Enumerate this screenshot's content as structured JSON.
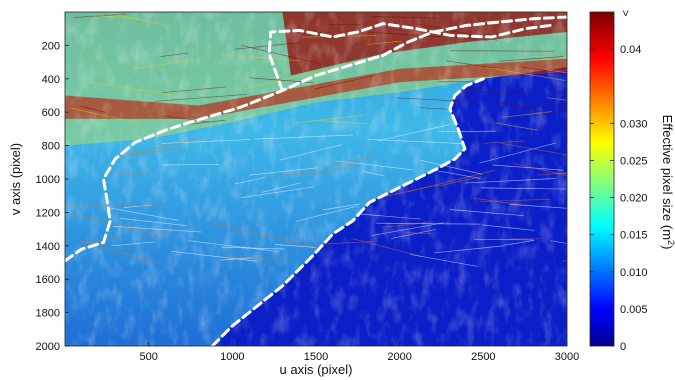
{
  "chart_data": {
    "type": "heatmap",
    "xlabel": "u axis (pixel)",
    "ylabel": "v axis (pixel)",
    "xlim": [
      0,
      3000
    ],
    "ylim": [
      2000,
      0
    ],
    "x_ticks": [
      500,
      1000,
      1500,
      2000,
      2500,
      3000
    ],
    "y_ticks": [
      200,
      400,
      600,
      800,
      1000,
      1200,
      1400,
      1600,
      1800,
      2000
    ],
    "colorbar": {
      "label_main": "Effective pixel size (m",
      "label_sup": "2",
      "label_end": ")",
      "range": [
        0,
        0.045
      ],
      "ticks": [
        "0",
        "0.005",
        "0.010",
        "0.015",
        "0.020",
        "0.025",
        "0.030",
        "0.04"
      ],
      "over_marker": ">",
      "colormap": "jet"
    },
    "boundary_style": {
      "color": "#ffffff",
      "dash": "white dashed line"
    },
    "boundary_segments": [
      [
        [
          0,
          1490
        ],
        [
          100,
          1420
        ],
        [
          230,
          1380
        ],
        [
          270,
          1250
        ],
        [
          250,
          1120
        ],
        [
          230,
          1000
        ],
        [
          300,
          880
        ],
        [
          420,
          780
        ],
        [
          620,
          700
        ],
        [
          850,
          630
        ],
        [
          1050,
          570
        ],
        [
          1300,
          470
        ],
        [
          1500,
          380
        ],
        [
          1700,
          320
        ],
        [
          1900,
          260
        ],
        [
          2050,
          180
        ],
        [
          2200,
          120
        ],
        [
          2400,
          80
        ],
        [
          2600,
          60
        ],
        [
          2800,
          40
        ],
        [
          3000,
          30
        ]
      ],
      [
        [
          1300,
          470
        ],
        [
          1220,
          250
        ],
        [
          1230,
          120
        ],
        [
          1400,
          110
        ],
        [
          1600,
          150
        ],
        [
          1750,
          120
        ],
        [
          1900,
          70
        ],
        [
          2100,
          100
        ],
        [
          2300,
          140
        ],
        [
          2550,
          150
        ],
        [
          2750,
          100
        ],
        [
          2900,
          80
        ]
      ],
      [
        [
          880,
          2000
        ],
        [
          1000,
          1880
        ],
        [
          1150,
          1760
        ],
        [
          1300,
          1640
        ],
        [
          1480,
          1460
        ],
        [
          1600,
          1330
        ],
        [
          1720,
          1250
        ],
        [
          1820,
          1140
        ],
        [
          1940,
          1080
        ],
        [
          2080,
          1010
        ],
        [
          2220,
          940
        ],
        [
          2330,
          880
        ],
        [
          2390,
          820
        ],
        [
          2350,
          700
        ],
        [
          2300,
          580
        ],
        [
          2330,
          500
        ],
        [
          2400,
          440
        ],
        [
          2500,
          400
        ]
      ]
    ]
  }
}
